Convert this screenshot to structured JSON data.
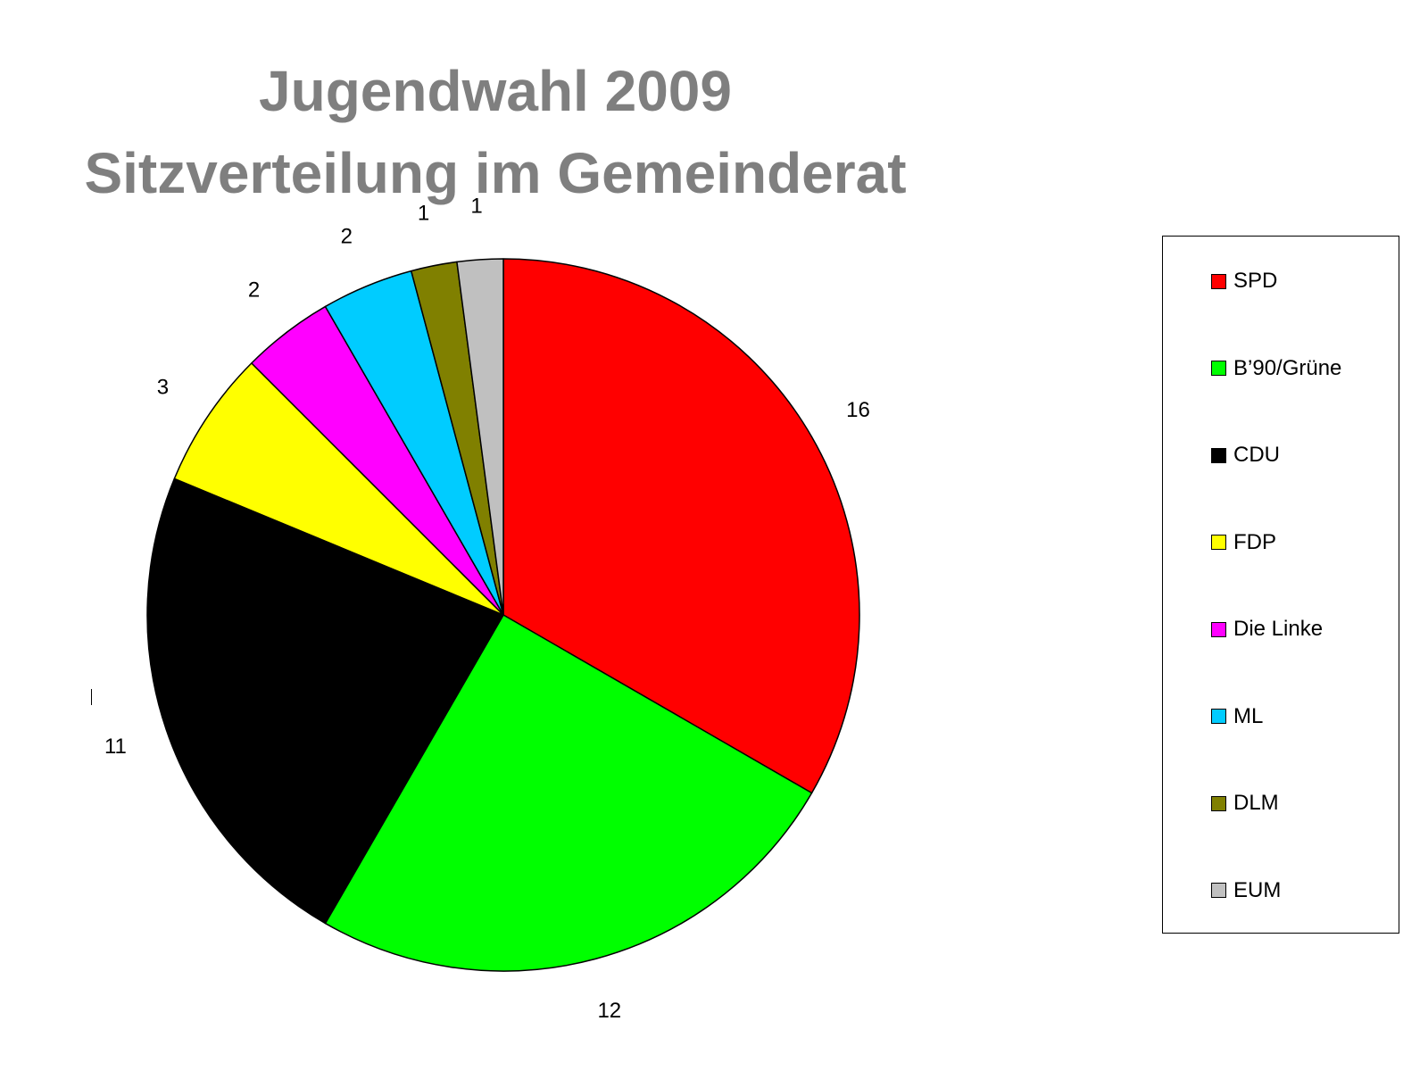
{
  "chart_data": {
    "type": "pie",
    "title": [
      "Jugendwahl 2009",
      "Sitzverteilung im Gemeinderat"
    ],
    "categories": [
      "SPD",
      "B’90/Grüne",
      "CDU",
      "FDP",
      "Die Linke",
      "ML",
      "DLM",
      "EUM"
    ],
    "values": [
      16,
      12,
      11,
      3,
      2,
      2,
      1,
      1
    ],
    "colors": [
      "#ff0000",
      "#00ff00",
      "#000000",
      "#ffff00",
      "#ff00ff",
      "#00ccff",
      "#808000",
      "#c0c0c0"
    ],
    "start_angle": "12 o'clock",
    "direction": "clockwise",
    "data_labels": "outside",
    "legend": "right"
  }
}
